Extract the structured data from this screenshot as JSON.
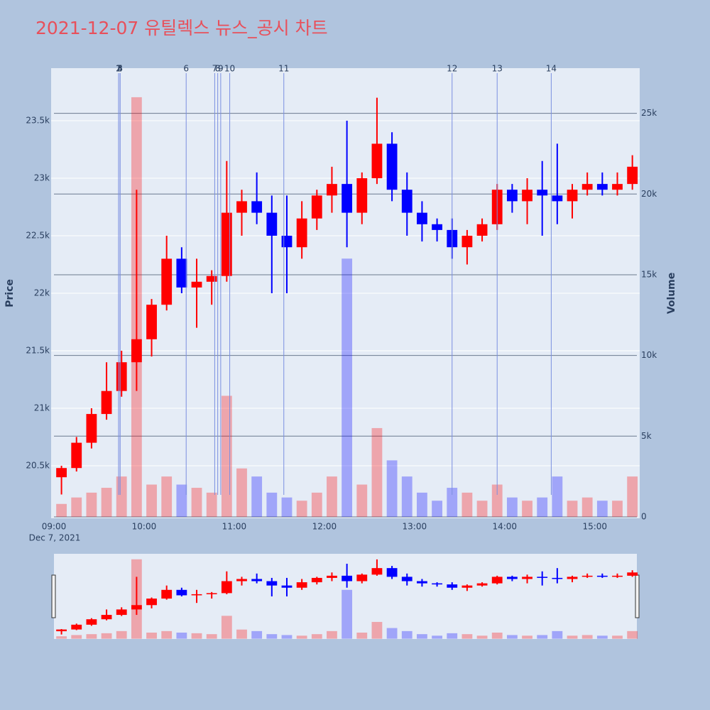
{
  "chart_data": {
    "type": "candlestick",
    "title": "2021-12-07 유틸렉스 뉴스_공시 차트",
    "x": [
      "09:00",
      "09:10",
      "09:20",
      "09:30",
      "09:40",
      "09:50",
      "10:00",
      "10:10",
      "10:20",
      "10:30",
      "10:40",
      "10:50",
      "11:00",
      "11:10",
      "11:20",
      "11:30",
      "11:40",
      "11:50",
      "12:00",
      "12:10",
      "12:20",
      "12:30",
      "12:40",
      "12:50",
      "13:00",
      "13:10",
      "13:20",
      "13:30",
      "13:40",
      "13:50",
      "14:00",
      "14:10",
      "14:20",
      "14:30",
      "14:40",
      "14:50",
      "15:00",
      "15:10",
      "15:20"
    ],
    "open": [
      20400,
      20480,
      20700,
      20950,
      21150,
      21400,
      21600,
      21900,
      22300,
      22050,
      22100,
      22150,
      22700,
      22800,
      22700,
      22500,
      22400,
      22650,
      22850,
      22950,
      22700,
      23000,
      23300,
      22900,
      22700,
      22600,
      22550,
      22400,
      22500,
      22600,
      22900,
      22800,
      22900,
      22850,
      22800,
      22900,
      22950,
      22900,
      22950
    ],
    "high": [
      20500,
      20750,
      21000,
      21400,
      21500,
      22900,
      21950,
      22500,
      22400,
      22300,
      22200,
      23150,
      22900,
      23050,
      22850,
      22850,
      22800,
      22900,
      23100,
      23500,
      23050,
      23700,
      23400,
      23050,
      22800,
      22650,
      22650,
      22550,
      22650,
      22950,
      22950,
      23000,
      23150,
      23300,
      22950,
      23050,
      23050,
      23050,
      23200
    ],
    "low": [
      20250,
      20450,
      20650,
      20900,
      21100,
      21150,
      21450,
      21850,
      22000,
      21700,
      21900,
      22100,
      22500,
      22600,
      22000,
      22000,
      22300,
      22550,
      22700,
      22400,
      22600,
      22950,
      22800,
      22500,
      22450,
      22450,
      22300,
      22250,
      22450,
      22550,
      22700,
      22600,
      22500,
      22600,
      22650,
      22850,
      22850,
      22850,
      22900
    ],
    "close": [
      20480,
      20700,
      20950,
      21150,
      21400,
      21600,
      21900,
      22300,
      22050,
      22100,
      22150,
      22700,
      22800,
      22700,
      22500,
      22400,
      22650,
      22850,
      22950,
      22700,
      23000,
      23300,
      22900,
      22700,
      22600,
      22550,
      22400,
      22500,
      22600,
      22900,
      22800,
      22900,
      22850,
      22800,
      22900,
      22950,
      22900,
      22950,
      23100
    ],
    "volume": [
      800,
      1200,
      1500,
      1800,
      2500,
      26000,
      2000,
      2500,
      2000,
      1800,
      1500,
      7500,
      3000,
      2500,
      1500,
      1200,
      1000,
      1500,
      2500,
      16000,
      2000,
      5500,
      3500,
      2500,
      1500,
      1000,
      1800,
      1500,
      1000,
      2000,
      1200,
      1000,
      1200,
      2500,
      1000,
      1200,
      1000,
      1000,
      2500
    ],
    "increasing_color": "#ff0000",
    "decreasing_color": "#0000ff",
    "xlim": [
      "09:00",
      "15:28"
    ],
    "xticks": [
      "09:00",
      "10:00",
      "11:00",
      "12:00",
      "13:00",
      "14:00",
      "15:00"
    ],
    "date_label": "Dec 7, 2021",
    "ylim": [
      20043,
      23957
    ],
    "yticks": [
      {
        "value": 20500,
        "label": "20.5k"
      },
      {
        "value": 21000,
        "label": "21k"
      },
      {
        "value": 21500,
        "label": "21.5k"
      },
      {
        "value": 22000,
        "label": "22k"
      },
      {
        "value": 22500,
        "label": "22.5k"
      },
      {
        "value": 23000,
        "label": "23k"
      },
      {
        "value": 23500,
        "label": "23.5k"
      }
    ],
    "y2lim": [
      -90,
      27800
    ],
    "y2ticks": [
      0,
      {
        "value": 5000,
        "label": "5k"
      },
      {
        "value": 10000,
        "label": "10k"
      },
      {
        "value": 15000,
        "label": "15k"
      },
      {
        "value": 20000,
        "label": "20k"
      },
      {
        "value": 25000,
        "label": "25k"
      }
    ],
    "yaxis_title": "Price",
    "y2axis_title": "Volume",
    "news": [
      {
        "label": "1",
        "time": "09:43"
      },
      {
        "label": "2",
        "time": "09:43"
      },
      {
        "label": "3",
        "time": "09:44"
      },
      {
        "label": "4",
        "time": "09:44"
      },
      {
        "label": "5",
        "time": "09:44"
      },
      {
        "label": "6",
        "time": "10:28"
      },
      {
        "label": "7",
        "time": "10:47"
      },
      {
        "label": "8",
        "time": "10:49"
      },
      {
        "label": "9",
        "time": "10:51"
      },
      {
        "label": "10",
        "time": "10:57"
      },
      {
        "label": "11",
        "time": "11:33"
      },
      {
        "label": "12",
        "time": "13:25"
      },
      {
        "label": "13",
        "time": "13:55"
      },
      {
        "label": "14",
        "time": "14:31"
      }
    ]
  }
}
